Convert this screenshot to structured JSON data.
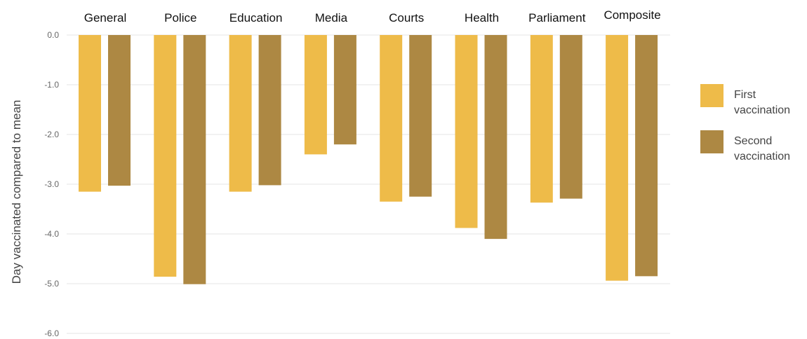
{
  "chart_data": {
    "type": "bar",
    "categories": [
      "General",
      "Police",
      "Education",
      "Media",
      "Courts",
      "Health",
      "Parliament",
      "Composite"
    ],
    "series": [
      {
        "name": "First vaccination",
        "color": "#EEBB49",
        "values": [
          -3.15,
          -4.86,
          -3.15,
          -2.4,
          -3.35,
          -3.88,
          -3.37,
          -4.94
        ]
      },
      {
        "name": "Second vaccination",
        "color": "#AD8843",
        "values": [
          -3.03,
          -5.01,
          -3.02,
          -2.2,
          -3.25,
          -4.1,
          -3.29,
          -4.85
        ]
      }
    ],
    "title": "",
    "xlabel": "",
    "ylabel": "Day vaccinated compared to mean",
    "ylim": [
      -6,
      0
    ],
    "yticks": [
      "0.0",
      "-1.0",
      "-2.0",
      "-3.0",
      "-4.0",
      "-5.0",
      "-6.0"
    ],
    "grid": true,
    "legend_placement": "right",
    "legend": [
      {
        "line1": "First",
        "line2": "vaccination"
      },
      {
        "line1": "Second",
        "line2": "vaccination"
      }
    ]
  }
}
